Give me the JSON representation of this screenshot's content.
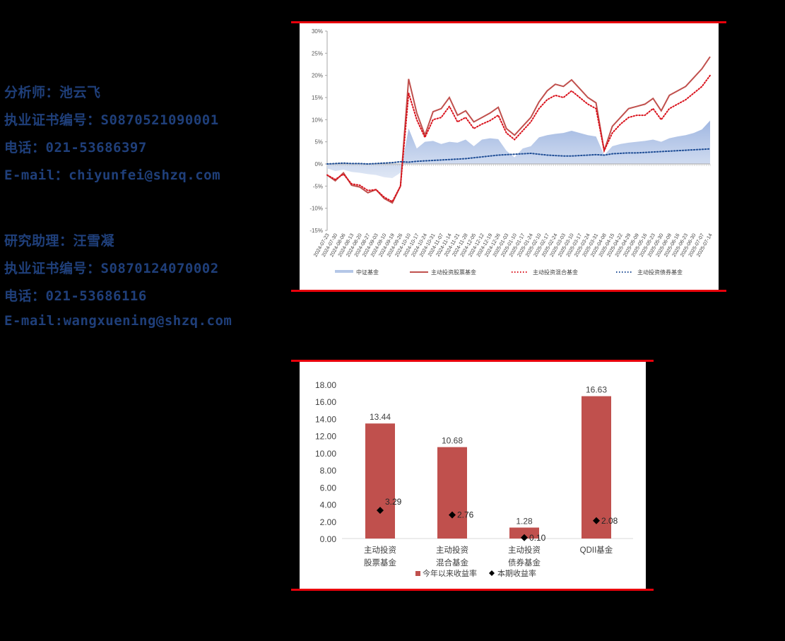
{
  "contacts": {
    "analyst": {
      "name_line": "分析师：池云飞",
      "cert_line": "执业证书编号：S0870521090001",
      "phone_line": "电话：021-53686397",
      "email_line": "E-mail：chiyunfei@shzq.com"
    },
    "assistant": {
      "name_line": "研究助理：汪雪凝",
      "cert_line": "执业证书编号：S0870124070002",
      "phone_line": "电话：021-53686116",
      "email_line": "E-mail:wangxuening@shzq.com"
    }
  },
  "colors": {
    "rule_red": "#e8000b",
    "equity_fund": "#c0504d",
    "hybrid_fund": "#d9111b",
    "bond_fund": "#1f4e96",
    "csi_fund_area": "#b4c7e7",
    "bar_fill": "#c0504d",
    "point_marker": "#000000"
  },
  "chart_data": [
    {
      "type": "line",
      "title": "",
      "xlabel": "",
      "ylabel": "",
      "ylim": [
        -15,
        30
      ],
      "yticks": [
        "30%",
        "25%",
        "20%",
        "15%",
        "10%",
        "5%",
        "0%",
        "-5%",
        "-10%",
        "-15%"
      ],
      "ytick_values": [
        30,
        25,
        20,
        15,
        10,
        5,
        0,
        -5,
        -10,
        -15
      ],
      "grid": false,
      "legend_position": "bottom",
      "x": [
        "2024-07-23",
        "2024-07-30",
        "2024-08-06",
        "2024-08-13",
        "2024-08-20",
        "2024-08-27",
        "2024-09-03",
        "2024-09-10",
        "2024-09-19",
        "2024-09-26",
        "2024-10-10",
        "2024-10-17",
        "2024-10-24",
        "2024-10-31",
        "2024-11-07",
        "2024-11-14",
        "2024-11-21",
        "2024-11-28",
        "2024-12-05",
        "2024-12-12",
        "2024-12-19",
        "2024-12-26",
        "2025-01-03",
        "2025-01-10",
        "2025-01-17",
        "2025-01-24",
        "2025-02-10",
        "2025-02-17",
        "2025-02-24",
        "2025-03-03",
        "2025-03-10",
        "2025-03-17",
        "2025-03-24",
        "2025-03-31",
        "2025-04-08",
        "2025-04-15",
        "2025-04-22",
        "2025-04-29",
        "2025-05-09",
        "2025-05-16",
        "2025-05-23",
        "2025-05-30",
        "2025-06-09",
        "2025-06-16",
        "2025-06-23",
        "2025-06-30",
        "2025-07-07",
        "2025-07-14"
      ],
      "series": [
        {
          "name": "中证基金",
          "style": "area",
          "color": "#b4c7e7",
          "values": [
            -1.0,
            -1.6,
            -1.3,
            -1.8,
            -2.0,
            -2.3,
            -2.5,
            -3.0,
            -3.2,
            -2.0,
            8.0,
            3.5,
            5.0,
            5.2,
            4.5,
            5.0,
            4.8,
            5.5,
            4.0,
            5.5,
            5.8,
            5.6,
            3.0,
            1.5,
            3.5,
            4.0,
            6.0,
            6.5,
            6.8,
            7.0,
            7.5,
            7.0,
            6.5,
            6.2,
            2.0,
            4.0,
            4.5,
            4.8,
            5.0,
            5.2,
            5.5,
            5.0,
            5.8,
            6.2,
            6.5,
            7.0,
            7.8,
            9.8
          ]
        },
        {
          "name": "主动投资股票基金",
          "style": "solid",
          "color": "#c0504d",
          "values": [
            -2.5,
            -3.8,
            -2.0,
            -4.8,
            -5.2,
            -6.5,
            -5.8,
            -7.8,
            -8.8,
            -5.0,
            19.2,
            11.5,
            6.5,
            11.8,
            12.5,
            15.0,
            11.0,
            12.0,
            9.5,
            10.5,
            11.5,
            12.8,
            8.0,
            6.5,
            8.5,
            10.5,
            14.0,
            16.5,
            18.0,
            17.5,
            19.0,
            17.0,
            15.0,
            13.8,
            3.0,
            8.5,
            10.5,
            12.5,
            13.0,
            13.5,
            14.8,
            12.0,
            15.5,
            16.5,
            17.5,
            19.5,
            21.5,
            24.2
          ]
        },
        {
          "name": "主动投资混合基金",
          "style": "dotted",
          "color": "#d9111b",
          "values": [
            -2.5,
            -3.5,
            -2.3,
            -4.5,
            -4.8,
            -6.0,
            -5.8,
            -7.5,
            -8.5,
            -5.0,
            16.0,
            10.0,
            6.0,
            10.0,
            10.5,
            13.0,
            9.5,
            10.5,
            8.0,
            9.0,
            9.8,
            11.0,
            7.0,
            5.5,
            7.5,
            9.5,
            12.5,
            14.5,
            15.5,
            15.0,
            16.5,
            15.0,
            13.5,
            12.5,
            3.0,
            7.0,
            9.0,
            10.5,
            11.0,
            11.0,
            12.5,
            10.0,
            12.5,
            13.5,
            14.5,
            16.0,
            17.5,
            20.0
          ]
        },
        {
          "name": "主动投资债券基金",
          "style": "dotted",
          "color": "#1f4e96",
          "values": [
            0.0,
            0.1,
            0.2,
            0.1,
            0.1,
            0.0,
            0.1,
            0.2,
            0.3,
            0.5,
            0.4,
            0.6,
            0.7,
            0.8,
            0.9,
            1.0,
            1.1,
            1.2,
            1.4,
            1.6,
            1.8,
            2.0,
            2.1,
            2.2,
            2.3,
            2.4,
            2.2,
            2.0,
            1.9,
            1.8,
            1.8,
            1.9,
            2.0,
            2.1,
            2.0,
            2.3,
            2.4,
            2.5,
            2.5,
            2.6,
            2.7,
            2.8,
            2.9,
            3.0,
            3.1,
            3.2,
            3.3,
            3.4
          ]
        }
      ]
    },
    {
      "type": "bar",
      "title": "",
      "xlabel": "",
      "ylabel": "",
      "ylim": [
        0,
        18
      ],
      "yticks": [
        "18.00",
        "16.00",
        "14.00",
        "12.00",
        "10.00",
        "8.00",
        "6.00",
        "4.00",
        "2.00",
        "0.00"
      ],
      "ytick_values": [
        18,
        16,
        14,
        12,
        10,
        8,
        6,
        4,
        2,
        0
      ],
      "grid": false,
      "legend_position": "bottom",
      "categories": [
        {
          "line1": "主动投资",
          "line2": "股票基金"
        },
        {
          "line1": "主动投资",
          "line2": "混合基金"
        },
        {
          "line1": "主动投资",
          "line2": "债券基金"
        },
        {
          "line1": "QDII基金",
          "line2": ""
        }
      ],
      "series": [
        {
          "name": "今年以来收益率",
          "style": "bar",
          "color": "#c0504d",
          "values": [
            13.44,
            10.68,
            1.28,
            16.63
          ],
          "labels": [
            "13.44",
            "10.68",
            "1.28",
            "16.63"
          ]
        },
        {
          "name": "本期收益率",
          "style": "marker-diamond",
          "color": "#000000",
          "values": [
            3.29,
            2.76,
            0.1,
            2.08
          ],
          "labels": [
            "3.29",
            "2.76",
            "0.10",
            "2.08"
          ]
        }
      ]
    }
  ]
}
